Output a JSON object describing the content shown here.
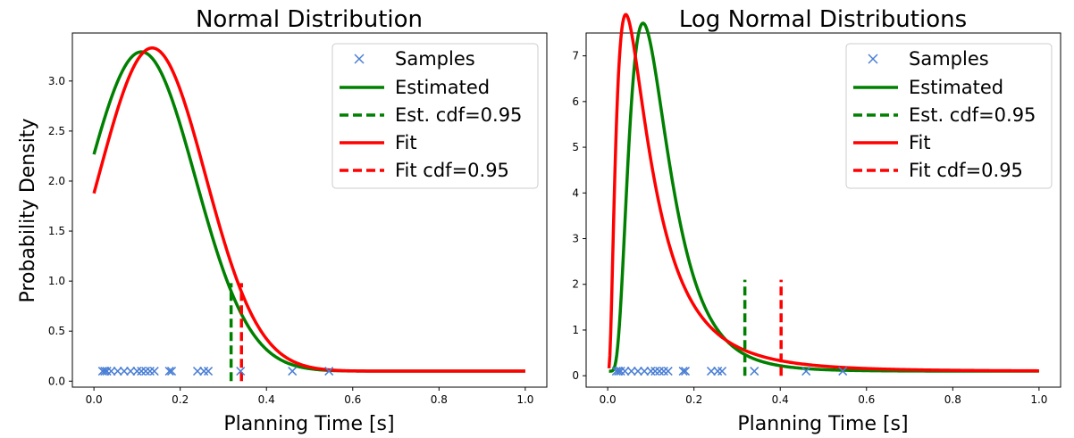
{
  "chart_data": [
    {
      "type": "line",
      "title": "Normal Distribution",
      "xlabel": "Planning Time [s]",
      "ylabel": "Probability Density",
      "xlim": [
        -0.05,
        1.05
      ],
      "ylim": [
        -0.06,
        3.48
      ],
      "xticks": [
        0.0,
        0.2,
        0.4,
        0.6,
        0.8,
        1.0
      ],
      "xtick_labels": [
        "0.0",
        "0.2",
        "0.4",
        "0.6",
        "0.8",
        "1.0"
      ],
      "yticks": [
        0.0,
        0.5,
        1.0,
        1.5,
        2.0,
        2.5,
        3.0
      ],
      "ytick_labels": [
        "0.0",
        "0.5",
        "1.0",
        "1.5",
        "2.0",
        "2.5",
        "3.0"
      ],
      "legend_position": "top-right",
      "legend": [
        {
          "label": "Samples",
          "kind": "marker",
          "color": "#4a7fd4"
        },
        {
          "label": "Estimated",
          "kind": "line",
          "color": "#008000"
        },
        {
          "label": "Est. cdf=0.95",
          "kind": "dashed",
          "color": "#008000"
        },
        {
          "label": "Fit",
          "kind": "line",
          "color": "#ff0000"
        },
        {
          "label": "Fit cdf=0.95",
          "kind": "dashed",
          "color": "#ff0000"
        }
      ],
      "samples": {
        "y": 0.1,
        "x": [
          0.02,
          0.025,
          0.03,
          0.04,
          0.055,
          0.07,
          0.085,
          0.1,
          0.11,
          0.12,
          0.13,
          0.14,
          0.175,
          0.18,
          0.24,
          0.255,
          0.265,
          0.34,
          0.46,
          0.545
        ]
      },
      "series": [
        {
          "name": "Estimated",
          "dist": "normal",
          "mu": 0.11,
          "sigma": 0.125,
          "offset": 0.1,
          "color": "#008000"
        },
        {
          "name": "Fit",
          "dist": "normal",
          "mu": 0.135,
          "sigma": 0.1235,
          "offset": 0.1,
          "color": "#ff0000"
        }
      ],
      "cdf_lines": [
        {
          "name": "Est. cdf=0.95",
          "x": 0.318,
          "ymax": 0.98,
          "color": "#008000"
        },
        {
          "name": "Fit cdf=0.95",
          "x": 0.342,
          "ymax": 0.98,
          "color": "#ff0000"
        }
      ]
    },
    {
      "type": "line",
      "title": "Log Normal Distributions",
      "xlabel": "Planning Time [s]",
      "ylabel": "",
      "xlim": [
        -0.05,
        1.05
      ],
      "ylim": [
        -0.25,
        7.5
      ],
      "xticks": [
        0.0,
        0.2,
        0.4,
        0.6,
        0.8,
        1.0
      ],
      "xtick_labels": [
        "0.0",
        "0.2",
        "0.4",
        "0.6",
        "0.8",
        "1.0"
      ],
      "yticks": [
        0,
        1,
        2,
        3,
        4,
        5,
        6,
        7
      ],
      "ytick_labels": [
        "0",
        "1",
        "2",
        "3",
        "4",
        "5",
        "6",
        "7"
      ],
      "legend_position": "top-right",
      "legend": [
        {
          "label": "Samples",
          "kind": "marker",
          "color": "#4a7fd4"
        },
        {
          "label": "Estimated",
          "kind": "line",
          "color": "#008000"
        },
        {
          "label": "Est. cdf=0.95",
          "kind": "dashed",
          "color": "#008000"
        },
        {
          "label": "Fit",
          "kind": "line",
          "color": "#ff0000"
        },
        {
          "label": "Fit cdf=0.95",
          "kind": "dashed",
          "color": "#ff0000"
        }
      ],
      "samples": {
        "y": 0.1,
        "x": [
          0.02,
          0.025,
          0.03,
          0.04,
          0.055,
          0.07,
          0.085,
          0.1,
          0.11,
          0.12,
          0.13,
          0.14,
          0.175,
          0.18,
          0.24,
          0.255,
          0.265,
          0.34,
          0.46,
          0.545
        ]
      },
      "series": [
        {
          "name": "Estimated",
          "dist": "lognormal",
          "mu": -2.2,
          "sigma": 0.55,
          "offset": 0.1,
          "color": "#008000"
        },
        {
          "name": "Fit",
          "dist": "lognormal",
          "mu": -2.45,
          "sigma": 0.85,
          "offset": 0.1,
          "color": "#ff0000"
        }
      ],
      "cdf_lines": [
        {
          "name": "Est. cdf=0.95",
          "x": 0.318,
          "ymax": 2.1,
          "color": "#008000"
        },
        {
          "name": "Fit cdf=0.95",
          "x": 0.402,
          "ymax": 2.1,
          "color": "#ff0000"
        }
      ]
    }
  ]
}
